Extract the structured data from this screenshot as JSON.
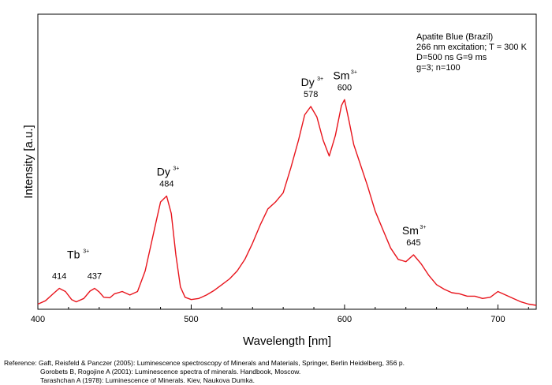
{
  "chart_data": {
    "type": "line",
    "title": "",
    "xlabel": "Wavelength [nm]",
    "ylabel": "Intensity [a.u.]",
    "xlim": [
      400,
      725
    ],
    "ylim": [
      0,
      100
    ],
    "xticks": [
      400,
      500,
      600,
      700
    ],
    "grid": false,
    "line_color": "#e8141c",
    "series": [
      {
        "name": "",
        "x": [
          400,
          405,
          410,
          414,
          418,
          422,
          425,
          430,
          434,
          437,
          440,
          443,
          447,
          450,
          455,
          460,
          465,
          470,
          474,
          477,
          480,
          484,
          487,
          490,
          493,
          496,
          500,
          505,
          510,
          515,
          520,
          525,
          530,
          535,
          540,
          545,
          550,
          555,
          560,
          565,
          570,
          574,
          578,
          582,
          586,
          590,
          594,
          598,
          600,
          603,
          606,
          610,
          615,
          620,
          625,
          630,
          635,
          640,
          645,
          650,
          655,
          660,
          665,
          670,
          675,
          680,
          685,
          690,
          695,
          700,
          705,
          710,
          715,
          720,
          725
        ],
        "y": [
          0.5,
          2,
          5,
          7.4,
          6,
          2.5,
          1.5,
          3,
          6.2,
          7.4,
          5.8,
          3.5,
          3.3,
          5,
          6,
          4.5,
          6,
          15,
          27,
          36,
          45,
          47.6,
          40,
          22,
          8,
          3.5,
          2.5,
          3,
          4.5,
          6.5,
          9,
          11.5,
          15,
          20,
          27,
          35,
          42,
          45,
          49,
          60,
          72,
          83,
          86.6,
          82,
          72,
          65,
          74,
          87,
          89.6,
          80,
          70,
          62,
          52,
          41,
          33,
          25,
          20,
          19,
          22,
          18,
          13,
          9,
          7,
          5.5,
          5,
          4,
          4,
          3,
          3.5,
          6,
          4.5,
          3,
          1.5,
          0.5,
          0
        ]
      }
    ],
    "annotations": [
      {
        "ion": "Tb",
        "charge": "3+",
        "wavelength": "414"
      },
      {
        "ion": "",
        "charge": "",
        "wavelength": "437"
      },
      {
        "ion": "Dy",
        "charge": "3+",
        "wavelength": "484"
      },
      {
        "ion": "Dy",
        "charge": "3+",
        "wavelength": "578"
      },
      {
        "ion": "Sm",
        "charge": "3+",
        "wavelength": "600"
      },
      {
        "ion": "Sm",
        "charge": "3+",
        "wavelength": "645"
      }
    ],
    "info": [
      "Apatite Blue (Brazil)",
      "266 nm excitation; T = 300 K",
      "D=500 ns G=9 ms",
      "g=3; n=100"
    ]
  },
  "references": {
    "label": "Reference:",
    "lines": [
      "Gaft, Reisfeld & Panczer (2005): Luminescence spectroscopy of Minerals and Materials, Springer, Berlin Heidelberg, 356 p.",
      "Gorobets B, Rogojine A (2001): Luminescence spectra of minerals. Handbook, Moscow.",
      "Tarashchan A (1978): Luminescence of Minerals. Kiev, Naukova Dumka."
    ]
  }
}
